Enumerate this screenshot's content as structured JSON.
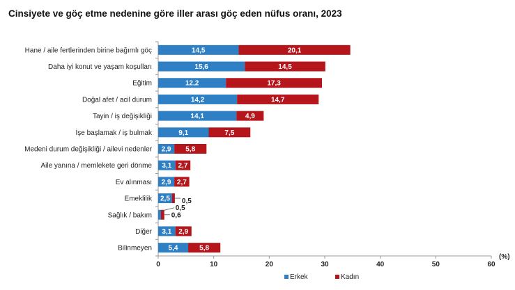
{
  "chart_data": {
    "type": "bar",
    "orientation": "horizontal",
    "stacked": true,
    "title": "Cinsiyete ve göç etme nedenine göre iller arası göç eden nüfus oranı, 2023",
    "xlabel": "",
    "unit_label": "(%)",
    "xlim": [
      0,
      60
    ],
    "xticks": [
      "0",
      "10",
      "20",
      "30",
      "40",
      "50",
      "60"
    ],
    "categories": [
      "Hane / aile fertlerinden birine bağımlı göç",
      "Daha iyi konut ve yaşam koşulları",
      "Eğitim",
      "Doğal afet / acil durum",
      "Tayin / iş değişikliği",
      "İşe başlamak / iş bulmak",
      "Medeni durum değişikliği / ailevi nedenler",
      "Aile yanına / memlekete geri dönme",
      "Ev alınması",
      "Emeklilik",
      "Sağlık / bakım",
      "Diğer",
      "Bilinmeyen"
    ],
    "series": [
      {
        "name": "Erkek",
        "color": "#2e7fc4",
        "values": [
          14.5,
          15.6,
          12.2,
          14.2,
          14.1,
          9.1,
          2.9,
          3.1,
          2.9,
          2.5,
          0.5,
          3.1,
          5.4
        ],
        "labels": [
          "14,5",
          "15,6",
          "12,2",
          "14,2",
          "14,1",
          "9,1",
          "2,9",
          "3,1",
          "2,9",
          "2,5",
          "0,5",
          "3,1",
          "5,4"
        ]
      },
      {
        "name": "Kadın",
        "color": "#b5161c",
        "values": [
          20.1,
          14.5,
          17.3,
          14.7,
          4.9,
          7.5,
          5.8,
          2.7,
          2.7,
          0.5,
          0.6,
          2.9,
          5.8
        ],
        "labels": [
          "20,1",
          "14,5",
          "17,3",
          "14,7",
          "4,9",
          "7,5",
          "5,8",
          "2,7",
          "2,7",
          "0,5",
          "0,6",
          "2,9",
          "5,8"
        ]
      }
    ],
    "legend_position": "bottom",
    "grid": false
  }
}
